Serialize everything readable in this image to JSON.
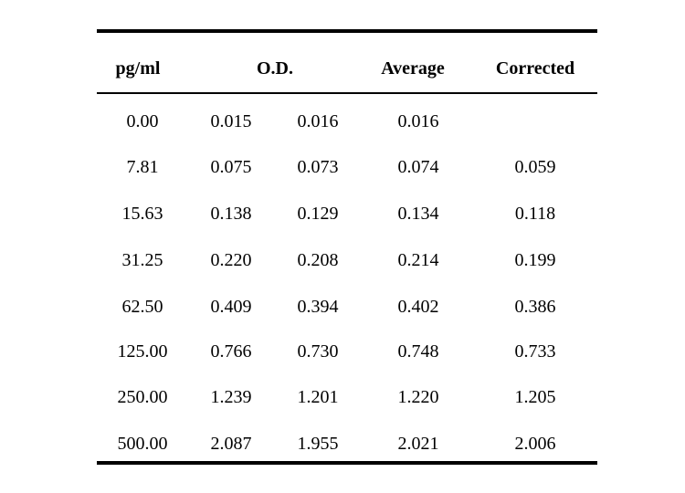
{
  "table": {
    "headers": {
      "concentration": "pg/ml",
      "od": "O.D.",
      "average": "Average",
      "corrected": "Corrected"
    },
    "rows": [
      {
        "conc": "0.00",
        "od1": "0.015",
        "od2": "0.016",
        "avg": "0.016",
        "corr": ""
      },
      {
        "conc": "7.81",
        "od1": "0.075",
        "od2": "0.073",
        "avg": "0.074",
        "corr": "0.059"
      },
      {
        "conc": "15.63",
        "od1": "0.138",
        "od2": "0.129",
        "avg": "0.134",
        "corr": "0.118"
      },
      {
        "conc": "31.25",
        "od1": "0.220",
        "od2": "0.208",
        "avg": "0.214",
        "corr": "0.199"
      },
      {
        "conc": "62.50",
        "od1": "0.409",
        "od2": "0.394",
        "avg": "0.402",
        "corr": "0.386"
      },
      {
        "conc": "125.00",
        "od1": "0.766",
        "od2": "0.730",
        "avg": "0.748",
        "corr": "0.733"
      },
      {
        "conc": "250.00",
        "od1": "1.239",
        "od2": "1.201",
        "avg": "1.220",
        "corr": "1.205"
      },
      {
        "conc": "500.00",
        "od1": "2.087",
        "od2": "1.955",
        "avg": "2.021",
        "corr": "2.006"
      }
    ]
  }
}
